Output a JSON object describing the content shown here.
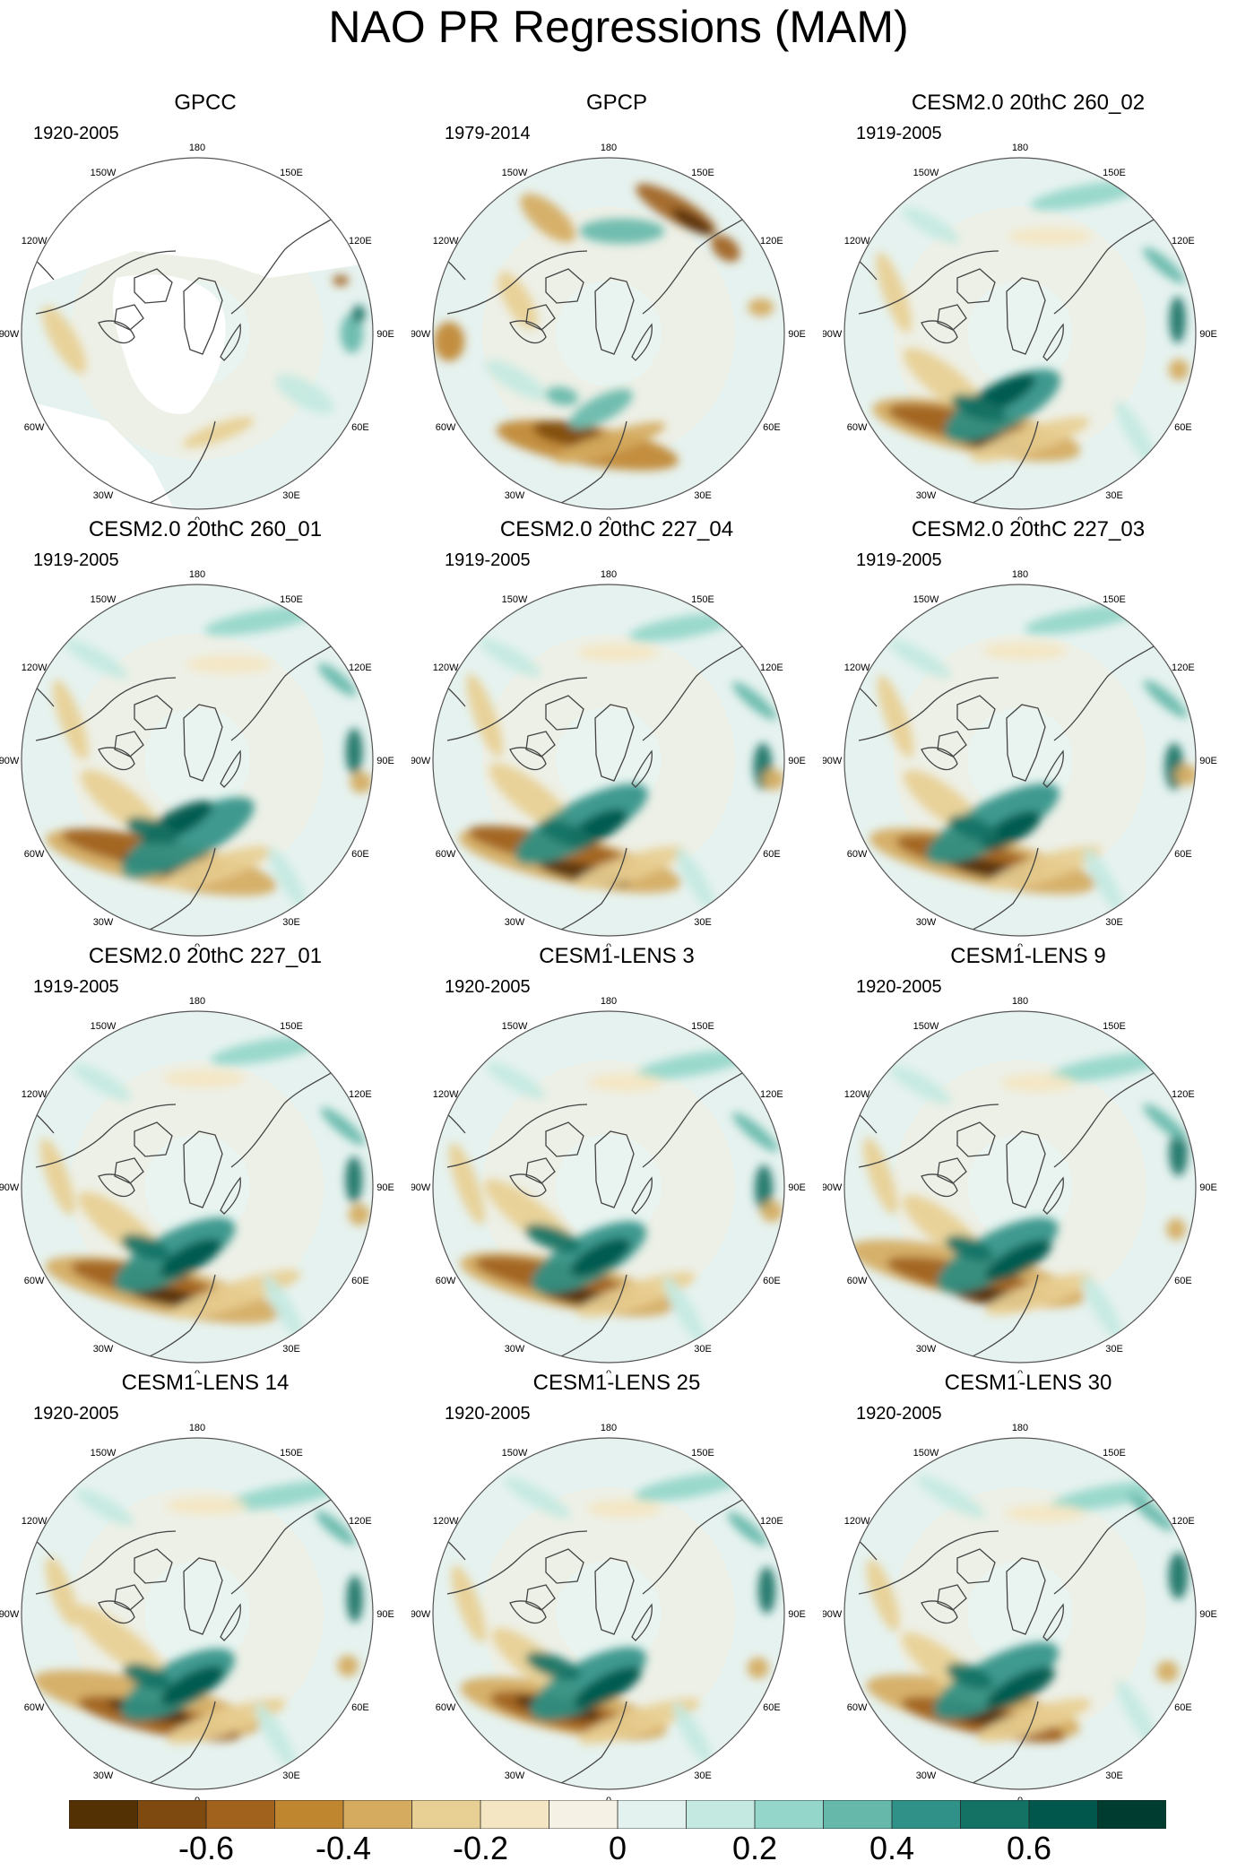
{
  "title": "NAO PR Regressions (MAM)",
  "panels": [
    {
      "name": "GPCC",
      "period": "1920-2005",
      "pattern": "obs-gpcc"
    },
    {
      "name": "GPCP",
      "period": "1979-2014",
      "pattern": "obs-gpcp"
    },
    {
      "name": "CESM2.0 20thC 260_02",
      "period": "1919-2005",
      "pattern": "model"
    },
    {
      "name": "CESM2.0 20thC 260_01",
      "period": "1919-2005",
      "pattern": "model"
    },
    {
      "name": "CESM2.0 20thC 227_04",
      "period": "1919-2005",
      "pattern": "model"
    },
    {
      "name": "CESM2.0 20thC 227_03",
      "period": "1919-2005",
      "pattern": "model"
    },
    {
      "name": "CESM2.0 20thC 227_01",
      "period": "1919-2005",
      "pattern": "model"
    },
    {
      "name": "CESM1-LENS 3",
      "period": "1920-2005",
      "pattern": "model"
    },
    {
      "name": "CESM1-LENS 9",
      "period": "1920-2005",
      "pattern": "model"
    },
    {
      "name": "CESM1-LENS 14",
      "period": "1920-2005",
      "pattern": "model"
    },
    {
      "name": "CESM1-LENS 25",
      "period": "1920-2005",
      "pattern": "model"
    },
    {
      "name": "CESM1-LENS 30",
      "period": "1920-2005",
      "pattern": "model"
    }
  ],
  "longitude_labels": [
    "180",
    "150E",
    "120E",
    "90E",
    "60E",
    "30E",
    "0",
    "30W",
    "60W",
    "90W",
    "120W",
    "150W"
  ],
  "colorbar": {
    "colors": [
      "#543005",
      "#7f4a0f",
      "#a0621c",
      "#c0852f",
      "#d5ab60",
      "#e8cf93",
      "#f4e6c2",
      "#f5f1e4",
      "#e3f2ef",
      "#c3e9e1",
      "#94d6c9",
      "#65b8aa",
      "#2f9187",
      "#137264",
      "#01574b",
      "#003c30"
    ],
    "tick_labels": [
      "-0.6",
      "-0.4",
      "-0.2",
      "0",
      "0.2",
      "0.4",
      "0.6"
    ],
    "tick_values": [
      -0.6,
      -0.4,
      -0.2,
      0,
      0.2,
      0.4,
      0.6
    ],
    "min": -0.8,
    "max": 0.8
  },
  "colors": {
    "ocean_neutral": "#e6f2ef",
    "coastline": "#444444",
    "missing": "#ffffff"
  }
}
